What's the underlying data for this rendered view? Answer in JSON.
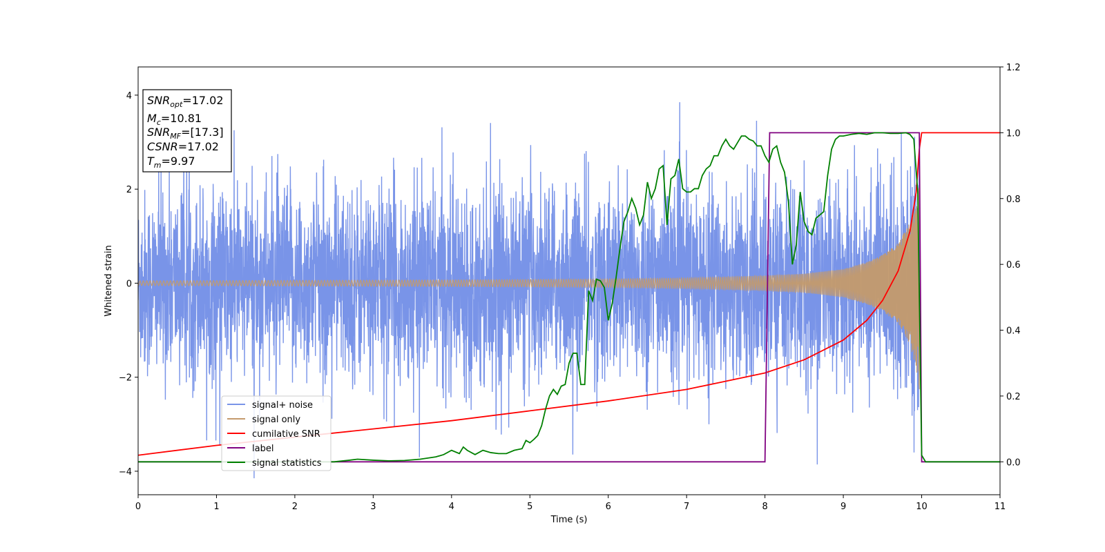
{
  "chart_data": {
    "type": "line",
    "xlabel": "Time (s)",
    "ylabel": "Whitened strain",
    "xlim": [
      0,
      11
    ],
    "ylim": [
      -4.5,
      4.6
    ],
    "y2lim": [
      -0.1,
      1.2
    ],
    "grid": false,
    "legend_position": "lower-left",
    "x_ticks": [
      0,
      1,
      2,
      3,
      4,
      5,
      6,
      7,
      8,
      9,
      10,
      11
    ],
    "y_ticks": [
      -4,
      -2,
      0,
      2,
      4
    ],
    "y2_ticks": [
      "0.0",
      "0.2",
      "0.4",
      "0.6",
      "0.8",
      "1.0",
      "1.2"
    ],
    "annotation": {
      "lines": [
        {
          "sym": "SNR",
          "sub": "opt",
          "val": "=17.02"
        },
        {
          "sym": "M",
          "sub": "c",
          "val": "=10.81"
        },
        {
          "sym": "SNR",
          "sub": "MF",
          "val": "=[17.3]"
        },
        {
          "sym": "CSNR",
          "sub": "",
          "val": "=17.02"
        },
        {
          "sym": "T",
          "sub": "m",
          "val": "=9.97"
        }
      ]
    },
    "series": [
      {
        "name": "signal+ noise",
        "color": "#7994e8",
        "axis": "left",
        "noise_std": 1.0,
        "y_range_observed": [
          -4.1,
          4.2
        ]
      },
      {
        "name": "signal only",
        "color": "#c49a6c",
        "axis": "left",
        "description_values": {
          "x": [
            0,
            2,
            4,
            6,
            7,
            8,
            8.5,
            9,
            9.3,
            9.5,
            9.7,
            9.85,
            9.93,
            9.97
          ],
          "amplitude": [
            0.05,
            0.06,
            0.07,
            0.09,
            0.11,
            0.16,
            0.2,
            0.3,
            0.45,
            0.6,
            0.85,
            1.3,
            1.8,
            2.3
          ]
        },
        "merger_time": 9.97
      },
      {
        "name": "cumilative SNR",
        "color": "#ff0000",
        "axis": "right",
        "x": [
          0,
          1,
          2,
          3,
          4,
          5,
          6,
          7,
          7.5,
          8,
          8.5,
          9,
          9.3,
          9.5,
          9.7,
          9.85,
          9.93,
          9.97,
          10,
          11
        ],
        "y": [
          0.02,
          0.05,
          0.075,
          0.1,
          0.125,
          0.155,
          0.185,
          0.22,
          0.245,
          0.27,
          0.31,
          0.37,
          0.43,
          0.49,
          0.58,
          0.7,
          0.82,
          0.95,
          1.0,
          1.0
        ]
      },
      {
        "name": "label",
        "color": "#800080",
        "axis": "right",
        "x": [
          0,
          8.0,
          8.06,
          9.97,
          10.0,
          11
        ],
        "y": [
          0,
          0,
          1,
          1,
          0,
          0
        ]
      },
      {
        "name": "signal statistics",
        "color": "#008000",
        "axis": "right",
        "x": [
          0,
          1,
          2,
          2.5,
          2.7,
          2.8,
          3.0,
          3.2,
          3.4,
          3.6,
          3.8,
          3.9,
          4.0,
          4.1,
          4.15,
          4.2,
          4.3,
          4.4,
          4.5,
          4.6,
          4.7,
          4.8,
          4.9,
          4.95,
          5.0,
          5.05,
          5.1,
          5.15,
          5.2,
          5.25,
          5.3,
          5.35,
          5.4,
          5.45,
          5.5,
          5.55,
          5.6,
          5.65,
          5.7,
          5.75,
          5.8,
          5.85,
          5.9,
          5.95,
          6.0,
          6.05,
          6.1,
          6.15,
          6.2,
          6.25,
          6.3,
          6.35,
          6.4,
          6.45,
          6.5,
          6.55,
          6.6,
          6.65,
          6.7,
          6.75,
          6.8,
          6.85,
          6.9,
          6.95,
          7.0,
          7.05,
          7.1,
          7.15,
          7.2,
          7.25,
          7.3,
          7.35,
          7.4,
          7.45,
          7.5,
          7.55,
          7.6,
          7.65,
          7.7,
          7.75,
          7.8,
          7.85,
          7.9,
          7.95,
          8.0,
          8.05,
          8.1,
          8.15,
          8.2,
          8.25,
          8.3,
          8.35,
          8.4,
          8.45,
          8.5,
          8.55,
          8.6,
          8.65,
          8.7,
          8.75,
          8.8,
          8.85,
          8.9,
          8.95,
          9.0,
          9.1,
          9.2,
          9.3,
          9.4,
          9.5,
          9.6,
          9.7,
          9.8,
          9.85,
          9.9,
          9.95,
          10.0,
          10.05,
          10.1,
          11
        ],
        "y": [
          0.0,
          0.0,
          0.0,
          0.0,
          0.005,
          0.008,
          0.005,
          0.003,
          0.004,
          0.008,
          0.015,
          0.022,
          0.035,
          0.025,
          0.045,
          0.035,
          0.022,
          0.035,
          0.028,
          0.025,
          0.025,
          0.035,
          0.04,
          0.065,
          0.058,
          0.068,
          0.08,
          0.11,
          0.16,
          0.2,
          0.22,
          0.205,
          0.23,
          0.235,
          0.3,
          0.33,
          0.33,
          0.235,
          0.235,
          0.52,
          0.49,
          0.555,
          0.55,
          0.53,
          0.43,
          0.48,
          0.56,
          0.65,
          0.73,
          0.76,
          0.8,
          0.77,
          0.72,
          0.75,
          0.85,
          0.8,
          0.83,
          0.89,
          0.9,
          0.72,
          0.86,
          0.87,
          0.92,
          0.83,
          0.82,
          0.82,
          0.83,
          0.83,
          0.87,
          0.89,
          0.9,
          0.93,
          0.93,
          0.96,
          0.98,
          0.96,
          0.95,
          0.97,
          0.99,
          0.99,
          0.98,
          0.975,
          0.96,
          0.96,
          0.93,
          0.91,
          0.95,
          0.96,
          0.91,
          0.88,
          0.79,
          0.6,
          0.66,
          0.82,
          0.73,
          0.7,
          0.69,
          0.74,
          0.75,
          0.76,
          0.87,
          0.95,
          0.98,
          0.99,
          0.99,
          0.995,
          0.998,
          0.995,
          1.0,
          1.0,
          0.998,
          0.998,
          1.0,
          0.995,
          0.98,
          0.82,
          0.02,
          0.0,
          0.0,
          0.0
        ],
        "segments_note": ""
      }
    ]
  }
}
